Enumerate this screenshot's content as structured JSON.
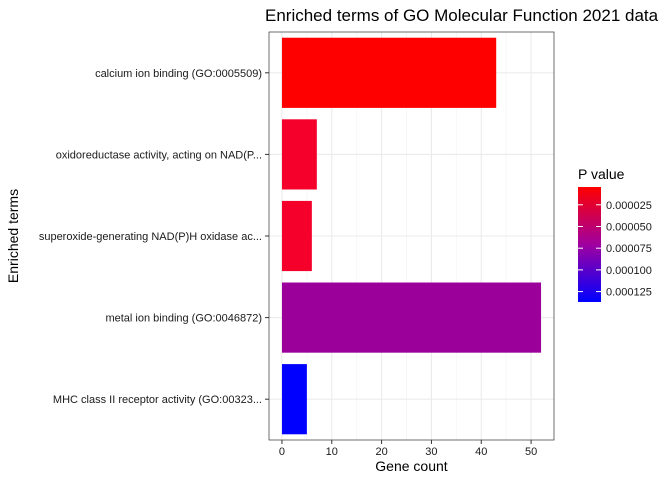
{
  "chart_data": {
    "type": "bar",
    "orientation": "horizontal",
    "title": "Enriched terms of GO Molecular Function 2021 data",
    "xlabel": "Gene count",
    "ylabel": "Enriched terms",
    "xlim": [
      -2.6,
      54.6
    ],
    "x_ticks": [
      0,
      10,
      20,
      30,
      40,
      50
    ],
    "grid": true,
    "categories": [
      "calcium ion binding (GO:0005509)",
      "oxidoreductase activity, acting on NAD(P...",
      "superoxide-generating NAD(P)H oxidase ac...",
      "metal ion binding (GO:0046872)",
      "MHC class II receptor activity (GO:00323..."
    ],
    "values": [
      43,
      7,
      6,
      52,
      5
    ],
    "p_values": [
      5e-06,
      1.2e-05,
      1.2e-05,
      6.5e-05,
      0.000135
    ],
    "bar_colors": [
      "#ff0000",
      "#f5002a",
      "#f5002a",
      "#9b009b",
      "#0000ff"
    ],
    "legend": {
      "title": "P value",
      "labels": [
        "0.000025",
        "0.000050",
        "0.000075",
        "0.000100",
        "0.000125"
      ],
      "values": [
        2.5e-05,
        5e-05,
        7.5e-05,
        0.0001,
        0.000125
      ],
      "range": [
        4.5e-06,
        0.000137
      ],
      "low_color": "#ff0000",
      "high_color": "#0000ff",
      "placement": "right"
    },
    "colors": {
      "panel_border": "#333333",
      "grid_major": "#ebebeb",
      "grid_minor": "#f5f5f5",
      "tick": "#333333"
    }
  }
}
